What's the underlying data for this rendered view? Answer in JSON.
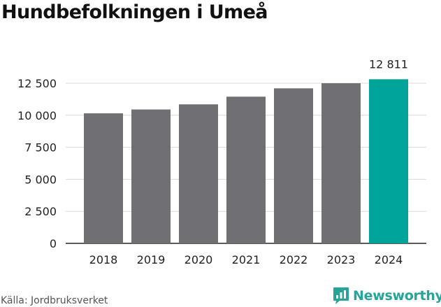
{
  "title": "Hundbefolkningen i Umeå",
  "source": "Källa: Jordbruksverket",
  "brand": {
    "name": "Newsworthy",
    "icon": "newsworthy-logo-icon"
  },
  "colors": {
    "bar": "#706f73",
    "highlight": "#00a499",
    "grid": "#d9d9d9",
    "axis": "#222222",
    "brand": "#25a59a"
  },
  "chart_data": {
    "type": "bar",
    "title": "Hundbefolkningen i Umeå",
    "xlabel": "",
    "ylabel": "",
    "categories": [
      "2018",
      "2019",
      "2020",
      "2021",
      "2022",
      "2023",
      "2024"
    ],
    "values": [
      10150,
      10450,
      10850,
      11450,
      12100,
      12500,
      12811
    ],
    "highlight_index": 6,
    "data_labels": [
      {
        "index": 6,
        "text": "12 811"
      }
    ],
    "ylim": [
      0,
      13500
    ],
    "yticks": [
      0,
      2500,
      5000,
      7500,
      10000,
      12500
    ],
    "ytick_labels": [
      "0",
      "2 500",
      "5 000",
      "7 500",
      "10 000",
      "12 500"
    ],
    "grid": "horizontal",
    "legend": "none"
  }
}
